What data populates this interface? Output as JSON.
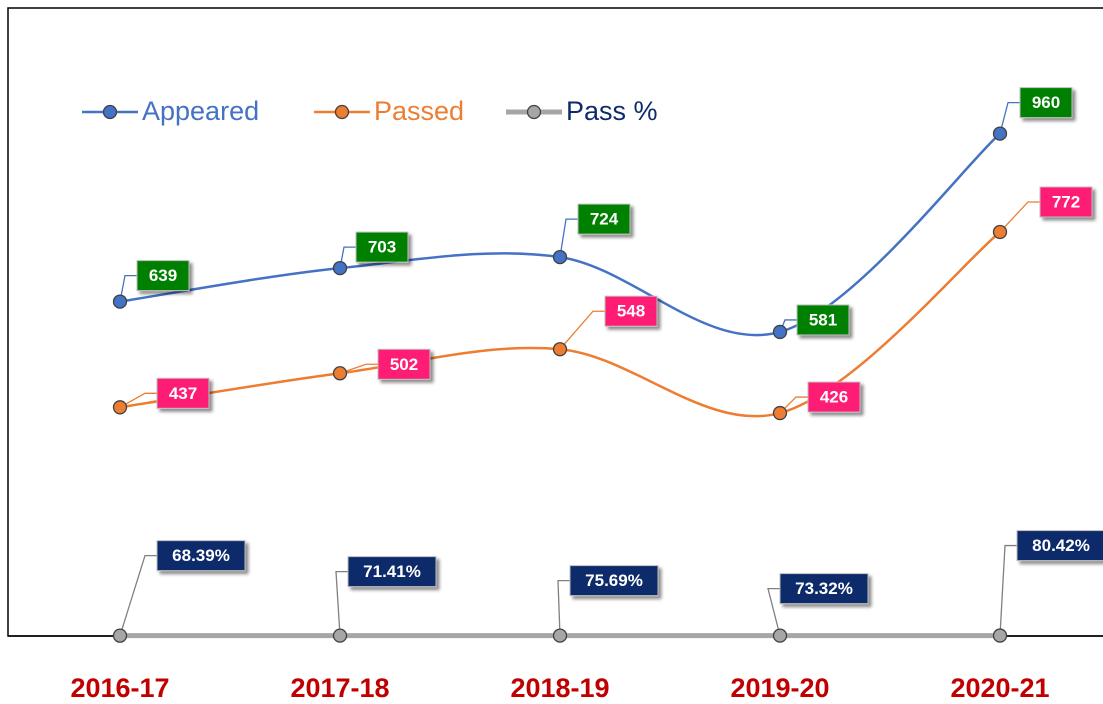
{
  "chart_data": {
    "type": "line",
    "categories": [
      "2016-17",
      "2017-18",
      "2018-19",
      "2019-20",
      "2020-21"
    ],
    "ylim": [
      0,
      1200
    ],
    "legend": "top-left",
    "series": [
      {
        "name": "Appeared",
        "color": "#4472c4",
        "label_color": "#008000",
        "values": [
          639,
          703,
          724,
          581,
          960
        ]
      },
      {
        "name": "Passed",
        "color": "#ed7d31",
        "label_color": "#ff1a75",
        "values": [
          437,
          502,
          548,
          426,
          772
        ]
      },
      {
        "name": "Pass %",
        "color": "#a6a6a6",
        "label_color": "#0d2a6b",
        "values": [
          0.6839,
          0.7141,
          0.7569,
          0.7332,
          0.8042
        ],
        "value_labels": [
          "68.39%",
          "71.41%",
          "75.69%",
          "73.32%",
          "80.42%"
        ]
      }
    ]
  }
}
